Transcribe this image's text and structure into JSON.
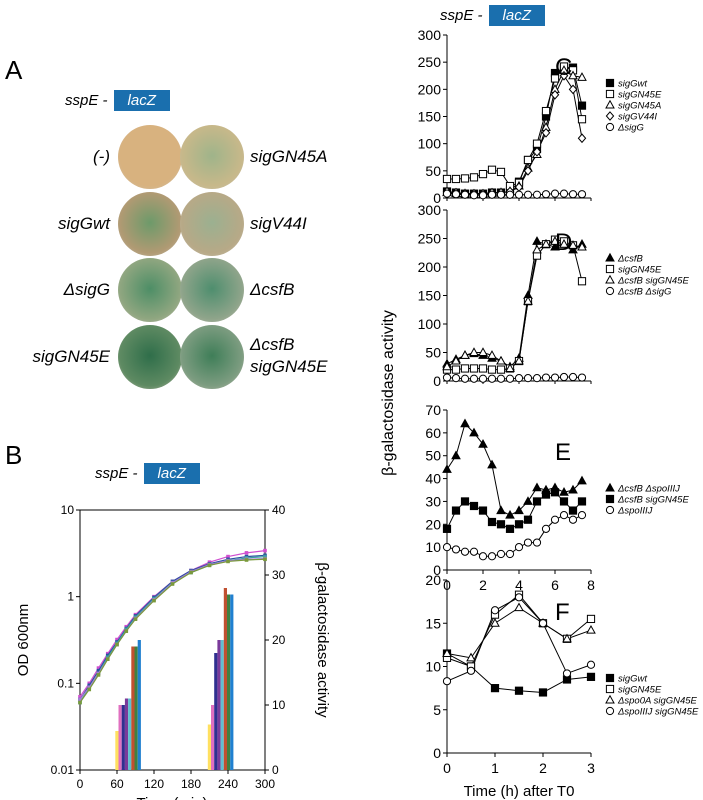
{
  "panelA": {
    "letter": "A",
    "construct": {
      "gene": "sspE -",
      "box": "lacZ"
    },
    "plates": [
      {
        "left": "(-)",
        "right": "sigGN45A",
        "cl": "#d8b27f",
        "cr": "#c7b88a",
        "gl": "#d8b27f",
        "gr": "#9fb48a"
      },
      {
        "left": "sigGwt",
        "right": "sigV44I",
        "cl": "#b09a73",
        "cr": "#b7a987",
        "gl": "#6d9a6a",
        "gr": "#9bb090"
      },
      {
        "left": "ΔsigG",
        "right": "ΔcsfB",
        "cl": "#8fa680",
        "cr": "#8ea48a",
        "gl": "#4d8e66",
        "gr": "#4e8e6e"
      },
      {
        "left": "sigGN45E",
        "right": "ΔcsfB",
        "right2": "sigGN45E",
        "cl": "#5e8a62",
        "cr": "#7c9c80",
        "gl": "#2f6e4a",
        "gr": "#3f7e58"
      }
    ]
  },
  "panelB": {
    "letter": "B",
    "construct": {
      "gene": "sspE -",
      "box": "lacZ"
    },
    "chart_data": {
      "type": "line",
      "title": "",
      "xlabel": "Time (min)",
      "ylabel": "OD 600nm",
      "ylabel_right": "β-galactosidase activity",
      "x_ticks": [
        "0",
        "60",
        "120",
        "180",
        "240",
        "300"
      ],
      "y_ticks": [
        "0.01",
        "0.1",
        "1",
        "10"
      ],
      "y2_ticks": [
        "0",
        "10",
        "20",
        "30",
        "40"
      ],
      "xlim": [
        0,
        300
      ],
      "ylim": [
        0.01,
        10
      ],
      "y_log": true,
      "y2lim": [
        0,
        40
      ],
      "od_x": [
        0,
        15,
        30,
        45,
        60,
        75,
        90,
        120,
        150,
        180,
        210,
        240,
        270,
        300
      ],
      "od_series": [
        {
          "color": "#d04fd0",
          "values": [
            0.07,
            0.1,
            0.15,
            0.22,
            0.32,
            0.45,
            0.62,
            1.0,
            1.5,
            2.0,
            2.5,
            2.9,
            3.2,
            3.4
          ]
        },
        {
          "color": "#2a4fa0",
          "values": [
            0.065,
            0.095,
            0.14,
            0.21,
            0.3,
            0.43,
            0.6,
            0.98,
            1.5,
            2.0,
            2.4,
            2.7,
            2.9,
            3.0
          ]
        },
        {
          "color": "#3a9fa0",
          "values": [
            0.06,
            0.09,
            0.13,
            0.2,
            0.29,
            0.42,
            0.58,
            0.95,
            1.45,
            1.9,
            2.3,
            2.6,
            2.8,
            2.9
          ]
        },
        {
          "color": "#a080d0",
          "values": [
            0.065,
            0.09,
            0.13,
            0.19,
            0.28,
            0.4,
            0.56,
            0.92,
            1.45,
            1.95,
            2.35,
            2.6,
            2.7,
            2.75
          ]
        },
        {
          "color": "#7a9a3a",
          "values": [
            0.06,
            0.085,
            0.125,
            0.19,
            0.28,
            0.4,
            0.55,
            0.9,
            1.4,
            1.9,
            2.3,
            2.55,
            2.65,
            2.7
          ]
        }
      ],
      "bar_groups": [
        {
          "x_center": 78,
          "values": [
            6,
            10,
            10,
            11,
            11,
            19,
            19,
            20
          ],
          "colors": [
            "#ffe060",
            "#e070c0",
            "#303090",
            "#7a3a9a",
            "#60c0d0",
            "#c05030",
            "#408040",
            "#2080d0"
          ]
        },
        {
          "x_center": 228,
          "values": [
            7,
            10,
            18,
            20,
            20,
            28,
            27,
            27
          ],
          "colors": [
            "#ffe060",
            "#e070c0",
            "#303090",
            "#7a3a9a",
            "#60c0d0",
            "#c05030",
            "#408040",
            "#2080d0"
          ]
        }
      ]
    }
  },
  "panelsCF": {
    "construct": {
      "gene": "sspE -",
      "box": "lacZ"
    },
    "shared_ylabel": "β-galactosidase activity",
    "panels": [
      {
        "letter": "C",
        "chart_data": {
          "type": "line",
          "xlim": [
            0,
            8
          ],
          "ylim": [
            0,
            300
          ],
          "y_ticks": [
            "0",
            "50",
            "100",
            "150",
            "200",
            "250",
            "300"
          ],
          "series": [
            {
              "name": "sigGwt",
              "marker": "filled-square",
              "x": [
                0,
                0.5,
                1,
                1.5,
                2,
                2.5,
                3,
                3.5,
                4,
                4.5,
                5,
                5.5,
                6,
                6.5,
                7,
                7.5
              ],
              "values": [
                12,
                10,
                8,
                8,
                8,
                10,
                10,
                12,
                30,
                70,
                90,
                150,
                230,
                240,
                240,
                170
              ]
            },
            {
              "name": "sigGN45E",
              "marker": "open-square",
              "x": [
                0,
                0.5,
                1,
                1.5,
                2,
                2.5,
                3,
                3.5,
                4,
                4.5,
                5,
                5.5,
                6,
                6.5,
                7,
                7.5
              ],
              "values": [
                35,
                35,
                36,
                38,
                44,
                52,
                48,
                22,
                28,
                70,
                100,
                160,
                220,
                242,
                235,
                145
              ]
            },
            {
              "name": "sigGN45A",
              "marker": "open-triangle",
              "x": [
                0,
                0.5,
                1,
                1.5,
                2,
                2.5,
                3,
                3.5,
                4,
                4.5,
                5,
                5.5,
                6,
                6.5,
                7,
                7.5
              ],
              "values": [
                10,
                8,
                8,
                6,
                6,
                8,
                10,
                12,
                22,
                55,
                80,
                130,
                200,
                235,
                225,
                222
              ]
            },
            {
              "name": "sigGV44I",
              "marker": "open-diamond",
              "x": [
                0,
                0.5,
                1,
                1.5,
                2,
                2.5,
                3,
                3.5,
                4,
                4.5,
                5,
                5.5,
                6,
                6.5,
                7,
                7.5
              ],
              "values": [
                12,
                10,
                8,
                8,
                8,
                10,
                10,
                12,
                20,
                50,
                85,
                120,
                190,
                225,
                200,
                110
              ]
            },
            {
              "name": "ΔsigG",
              "marker": "open-circle",
              "x": [
                0,
                0.5,
                1,
                1.5,
                2,
                2.5,
                3,
                3.5,
                4,
                4.5,
                5,
                5.5,
                6,
                6.5,
                7,
                7.5
              ],
              "values": [
                8,
                7,
                6,
                5,
                5,
                6,
                6,
                6,
                6,
                6,
                6,
                7,
                8,
                8,
                7,
                7
              ]
            }
          ]
        }
      },
      {
        "letter": "D",
        "chart_data": {
          "type": "line",
          "xlim": [
            0,
            8
          ],
          "ylim": [
            0,
            300
          ],
          "y_ticks": [
            "0",
            "50",
            "100",
            "150",
            "200",
            "250",
            "300"
          ],
          "series": [
            {
              "name": "ΔcsfB",
              "marker": "filled-triangle",
              "x": [
                0,
                0.5,
                1,
                1.5,
                2,
                2.5,
                3,
                3.5,
                4,
                4.5,
                5,
                5.5,
                6,
                6.5,
                7,
                7.5
              ],
              "values": [
                30,
                38,
                45,
                48,
                45,
                40,
                35,
                25,
                40,
                150,
                245,
                240,
                235,
                240,
                230,
                240
              ]
            },
            {
              "name": "sigGN45E",
              "marker": "open-square",
              "x": [
                0,
                0.5,
                1,
                1.5,
                2,
                2.5,
                3,
                3.5,
                4,
                4.5,
                5,
                5.5,
                6,
                6.5,
                7,
                7.5
              ],
              "values": [
                20,
                20,
                22,
                22,
                22,
                20,
                20,
                22,
                35,
                140,
                220,
                240,
                248,
                245,
                238,
                175
              ]
            },
            {
              "name": "ΔcsfB sigGN45E",
              "marker": "open-triangle",
              "x": [
                0,
                0.5,
                1,
                1.5,
                2,
                2.5,
                3,
                3.5,
                4,
                4.5,
                5,
                5.5,
                6,
                6.5,
                7,
                7.5
              ],
              "values": [
                25,
                35,
                45,
                50,
                50,
                45,
                35,
                22,
                35,
                140,
                230,
                240,
                245,
                240,
                238,
                235
              ]
            },
            {
              "name": "ΔcsfB ΔsigG",
              "marker": "open-circle",
              "x": [
                0,
                0.5,
                1,
                1.5,
                2,
                2.5,
                3,
                3.5,
                4,
                4.5,
                5,
                5.5,
                6,
                6.5,
                7,
                7.5
              ],
              "values": [
                6,
                5,
                4,
                4,
                4,
                4,
                4,
                4,
                5,
                5,
                5,
                6,
                6,
                7,
                7,
                6
              ]
            }
          ]
        }
      },
      {
        "letter": "E",
        "chart_data": {
          "type": "line",
          "xlim": [
            0,
            8
          ],
          "ylim": [
            0,
            70
          ],
          "x_ticks": [
            "0",
            "2",
            "4",
            "6",
            "8"
          ],
          "y_ticks": [
            "0",
            "10",
            "20",
            "30",
            "40",
            "50",
            "60",
            "70"
          ],
          "xlabel": "",
          "series": [
            {
              "name": "ΔcsfB ΔspoIIIJ",
              "marker": "filled-triangle",
              "x": [
                0,
                0.5,
                1,
                1.5,
                2,
                2.5,
                3,
                3.5,
                4,
                4.5,
                5,
                5.5,
                6,
                6.5,
                7,
                7.5
              ],
              "values": [
                44,
                50,
                64,
                60,
                55,
                46,
                26,
                24,
                26,
                30,
                36,
                35,
                36,
                34,
                35,
                39
              ]
            },
            {
              "name": "ΔcsfB sigGN45E",
              "marker": "filled-square",
              "x": [
                0,
                0.5,
                1,
                1.5,
                2,
                2.5,
                3,
                3.5,
                4,
                4.5,
                5,
                5.5,
                6,
                6.5,
                7,
                7.5
              ],
              "values": [
                18,
                26,
                30,
                28,
                26,
                21,
                20,
                18,
                20,
                22,
                30,
                33,
                34,
                30,
                26,
                30
              ]
            },
            {
              "name": "ΔspoIIIJ",
              "marker": "open-circle",
              "x": [
                0,
                0.5,
                1,
                1.5,
                2,
                2.5,
                3,
                3.5,
                4,
                4.5,
                5,
                5.5,
                6,
                6.5,
                7,
                7.5
              ],
              "values": [
                10,
                9,
                8,
                8,
                6,
                6,
                7,
                7,
                10,
                12,
                12,
                18,
                22,
                24,
                22,
                24
              ]
            }
          ]
        }
      },
      {
        "letter": "F",
        "chart_data": {
          "type": "line",
          "xlim": [
            0,
            3
          ],
          "ylim": [
            0,
            20
          ],
          "x_ticks": [
            "0",
            "1",
            "2",
            "3"
          ],
          "y_ticks": [
            "0",
            "5",
            "10",
            "15",
            "20"
          ],
          "xlabel": "Time (h) after T0",
          "series": [
            {
              "name": "sigGwt",
              "marker": "filled-square",
              "x": [
                0,
                0.5,
                1,
                1.5,
                2,
                2.5,
                3
              ],
              "values": [
                11.5,
                10,
                7.5,
                7.2,
                7.0,
                8.5,
                8.8
              ]
            },
            {
              "name": "sigGN45E",
              "marker": "open-square",
              "x": [
                0,
                0.5,
                1,
                1.5,
                2,
                2.5,
                3
              ],
              "values": [
                11,
                10,
                16,
                18.3,
                15,
                13.2,
                15.5
              ]
            },
            {
              "name": "Δspo0A sigGN45E",
              "marker": "open-triangle",
              "x": [
                0,
                0.5,
                1,
                1.5,
                2,
                2.5,
                3
              ],
              "values": [
                11.5,
                11,
                15,
                16.8,
                15,
                13.2,
                14.2
              ]
            },
            {
              "name": "ΔspoIIIJ sigGN45E",
              "marker": "open-circle",
              "x": [
                0,
                0.5,
                1,
                1.5,
                2,
                2.5,
                3
              ],
              "values": [
                8.3,
                9.5,
                16.5,
                18,
                15,
                9.2,
                10.2
              ]
            }
          ]
        }
      }
    ]
  }
}
